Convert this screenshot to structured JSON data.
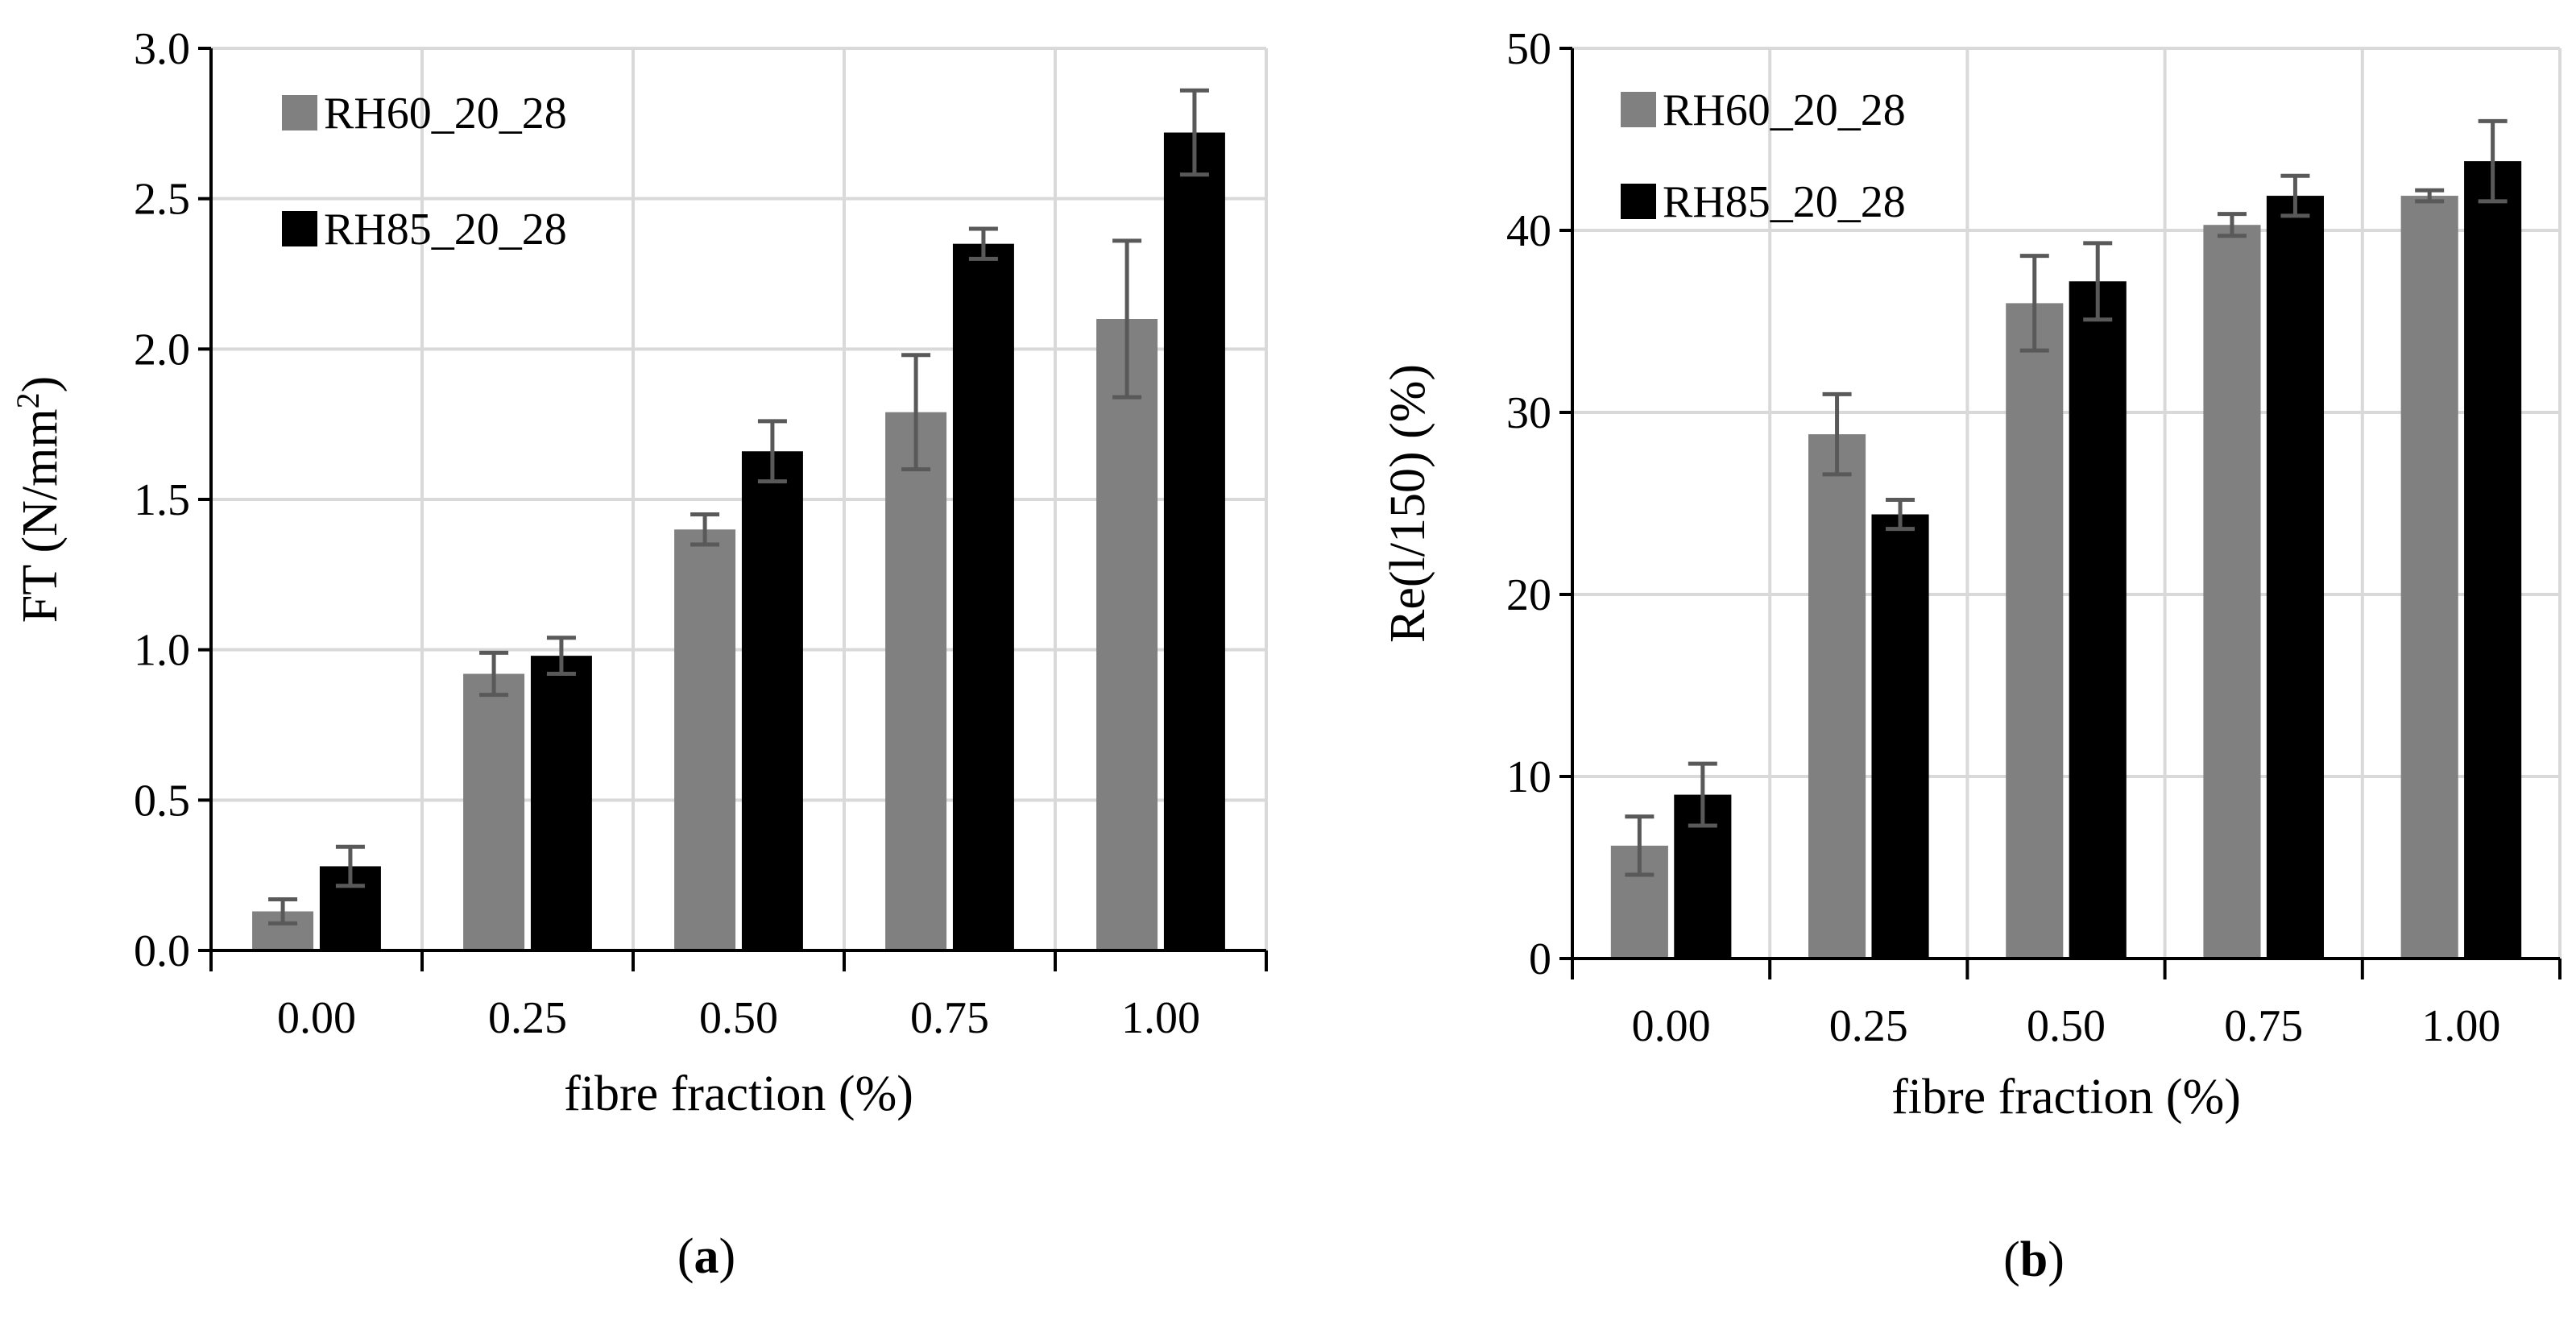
{
  "chart_data": [
    {
      "type": "bar",
      "panel_label": "(a)",
      "panel_letter": "a",
      "xlabel": "fibre fraction (%)",
      "ylabel": "FT (N/mm²)",
      "ylabel_base": "FT (N/mm",
      "ylabel_sup": "2",
      "ylabel_tail": ")",
      "ylim": [
        0,
        3.0
      ],
      "yticks": [
        "0.0",
        "0.5",
        "1.0",
        "1.5",
        "2.0",
        "2.5",
        "3.0"
      ],
      "categories": [
        "0.00",
        "0.25",
        "0.50",
        "0.75",
        "1.00"
      ],
      "grid": true,
      "legend_position": "top-left",
      "series": [
        {
          "name": "RH60_20_28",
          "color": "#808080",
          "values": [
            0.13,
            0.92,
            1.4,
            1.79,
            2.1
          ],
          "errors": [
            0.04,
            0.07,
            0.05,
            0.19,
            0.26
          ]
        },
        {
          "name": "RH85_20_28",
          "color": "#000000",
          "values": [
            0.28,
            0.98,
            1.66,
            2.35,
            2.72
          ],
          "errors": [
            0.065,
            0.06,
            0.1,
            0.05,
            0.14
          ]
        }
      ]
    },
    {
      "type": "bar",
      "panel_label": "(b)",
      "panel_letter": "b",
      "xlabel": "fibre fraction (%)",
      "ylabel": "Re(l/150) (%)",
      "ylim": [
        0,
        50
      ],
      "yticks": [
        "0",
        "10",
        "20",
        "30",
        "40",
        "50"
      ],
      "categories": [
        "0.00",
        "0.25",
        "0.50",
        "0.75",
        "1.00"
      ],
      "grid": true,
      "legend_position": "top-left",
      "series": [
        {
          "name": "RH60_20_28",
          "color": "#808080",
          "values": [
            6.2,
            28.8,
            36.0,
            40.3,
            41.9
          ],
          "errors": [
            1.6,
            2.2,
            2.6,
            0.6,
            0.3
          ]
        },
        {
          "name": "RH85_20_28",
          "color": "#000000",
          "values": [
            9.0,
            24.4,
            37.2,
            41.9,
            43.8
          ],
          "errors": [
            1.7,
            0.8,
            2.1,
            1.1,
            2.2
          ]
        }
      ]
    }
  ]
}
